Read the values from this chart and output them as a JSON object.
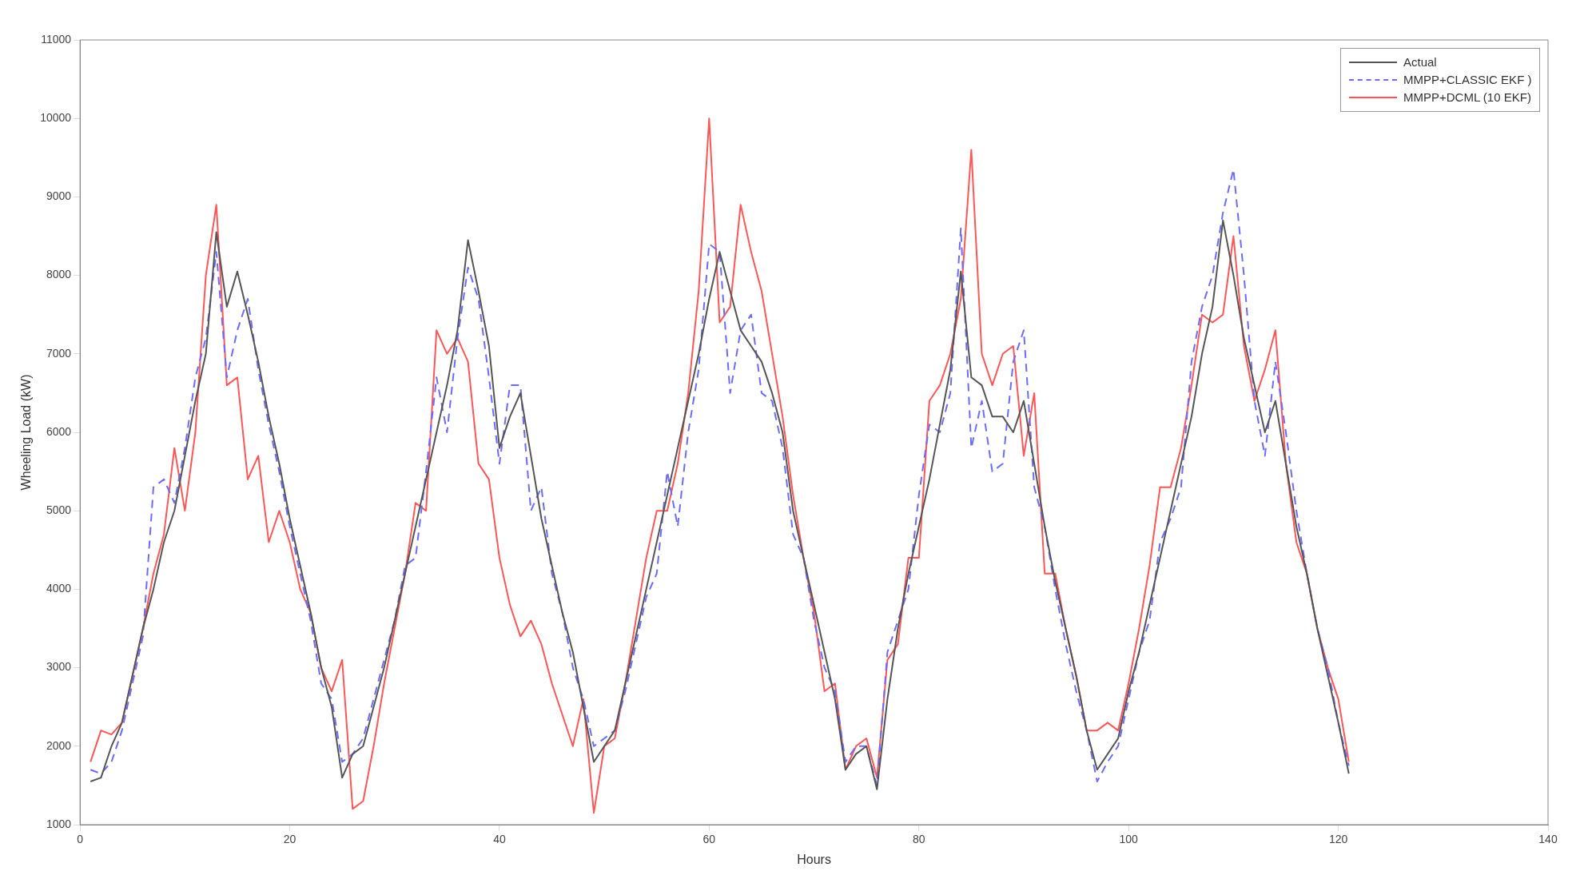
{
  "chart_data": {
    "type": "line",
    "xlabel": "Hours",
    "ylabel": "Wheeling Load (kW)",
    "xlim": [
      0,
      140
    ],
    "xticks": [
      0,
      20,
      40,
      60,
      80,
      100,
      120,
      140
    ],
    "ylim": [
      1000,
      11000
    ],
    "yticks": [
      1000,
      2000,
      3000,
      4000,
      5000,
      6000,
      7000,
      8000,
      9000,
      10000,
      11000
    ],
    "grid": false,
    "legend": "top right",
    "marker": "none",
    "x": [
      1,
      2,
      3,
      4,
      5,
      6,
      7,
      8,
      9,
      10,
      11,
      12,
      13,
      14,
      15,
      16,
      17,
      18,
      19,
      20,
      21,
      22,
      23,
      24,
      25,
      26,
      27,
      28,
      29,
      30,
      31,
      32,
      33,
      34,
      35,
      36,
      37,
      38,
      39,
      40,
      41,
      42,
      43,
      44,
      45,
      46,
      47,
      48,
      49,
      50,
      51,
      52,
      53,
      54,
      55,
      56,
      57,
      58,
      59,
      60,
      61,
      62,
      63,
      64,
      65,
      66,
      67,
      68,
      69,
      70,
      71,
      72,
      73,
      74,
      75,
      76,
      77,
      78,
      79,
      80,
      81,
      82,
      83,
      84,
      85,
      86,
      87,
      88,
      89,
      90,
      91,
      92,
      93,
      94,
      95,
      96,
      97,
      98,
      99,
      100,
      101,
      102,
      103,
      104,
      105,
      106,
      107,
      108,
      109,
      110,
      111,
      112,
      113,
      114,
      115,
      116,
      117,
      118,
      119,
      120,
      121
    ],
    "series": [
      {
        "name": "Actual",
        "color": "#555555",
        "line_style": "solid",
        "values": [
          1550,
          1600,
          2000,
          2300,
          2900,
          3500,
          4000,
          4600,
          5000,
          5700,
          6400,
          7000,
          8550,
          7600,
          8050,
          7500,
          6900,
          6200,
          5600,
          4900,
          4300,
          3700,
          3000,
          2500,
          1600,
          1900,
          2000,
          2500,
          3000,
          3600,
          4200,
          4800,
          5400,
          6000,
          6600,
          7300,
          8450,
          7800,
          7100,
          5800,
          6200,
          6500,
          5700,
          4900,
          4300,
          3700,
          3200,
          2500,
          1800,
          2000,
          2200,
          2800,
          3400,
          4000,
          4600,
          5200,
          5800,
          6400,
          7000,
          7700,
          8300,
          7800,
          7300,
          7100,
          6900,
          6500,
          6000,
          5000,
          4400,
          3800,
          3200,
          2600,
          1700,
          1900,
          2000,
          1450,
          2600,
          3500,
          4200,
          4800,
          5400,
          6100,
          6800,
          8050,
          6700,
          6600,
          6200,
          6200,
          6000,
          6400,
          5600,
          4800,
          4100,
          3500,
          2900,
          2200,
          1700,
          1900,
          2100,
          2700,
          3200,
          3800,
          4400,
          5000,
          5600,
          6200,
          7000,
          7600,
          8700,
          8000,
          7200,
          6600,
          6000,
          6400,
          5600,
          4800,
          4200,
          3500,
          2900,
          2300,
          1650
        ]
      },
      {
        "name": "MMPP+CLASSIC EKF )",
        "color": "#6b6bff",
        "line_style": "dashed",
        "values": [
          1700,
          1650,
          1800,
          2200,
          2800,
          3400,
          5300,
          5400,
          5100,
          5800,
          6700,
          7200,
          8300,
          6700,
          7300,
          7700,
          6800,
          6100,
          5500,
          4800,
          4200,
          3600,
          2800,
          2600,
          1800,
          1900,
          2100,
          2600,
          3100,
          3600,
          4300,
          4400,
          5500,
          6700,
          6000,
          7200,
          8100,
          7700,
          6700,
          5600,
          6600,
          6600,
          5000,
          5300,
          4200,
          3700,
          3000,
          2600,
          2000,
          2100,
          2200,
          2700,
          3300,
          3900,
          4200,
          5500,
          4800,
          6000,
          6800,
          8400,
          8300,
          6500,
          7300,
          7500,
          6500,
          6400,
          5800,
          4700,
          4400,
          3600,
          3000,
          2700,
          1800,
          2000,
          2000,
          1500,
          3200,
          3600,
          4000,
          5200,
          6100,
          6000,
          6500,
          8600,
          5800,
          6400,
          5500,
          5600,
          6900,
          7300,
          5300,
          4800,
          4000,
          3300,
          2700,
          2200,
          1550,
          1800,
          2000,
          2600,
          3200,
          3600,
          4600,
          4900,
          5300,
          6900,
          7600,
          8000,
          8800,
          9350,
          8000,
          6400,
          5700,
          6900,
          6000,
          5000,
          4200,
          3500,
          3000,
          2300,
          1750
        ]
      },
      {
        "name": "MMPP+DCML (10 EKF)",
        "color": "#ff5555",
        "line_style": "solid",
        "values": [
          1800,
          2200,
          2150,
          2300,
          2900,
          3500,
          4200,
          4700,
          5800,
          5000,
          6000,
          8000,
          8900,
          6600,
          6700,
          5400,
          5700,
          4600,
          5000,
          4600,
          4000,
          3700,
          3000,
          2700,
          3100,
          1200,
          1300,
          2000,
          2800,
          3500,
          4200,
          5100,
          5000,
          7300,
          7000,
          7200,
          6900,
          5600,
          5400,
          4400,
          3800,
          3400,
          3600,
          3300,
          2800,
          2400,
          2000,
          2600,
          1150,
          2000,
          2100,
          2800,
          3600,
          4400,
          5000,
          5000,
          5600,
          6500,
          7800,
          10000,
          7400,
          7600,
          8900,
          8300,
          7800,
          7000,
          6200,
          5200,
          4400,
          3700,
          2700,
          2800,
          1700,
          2000,
          2100,
          1600,
          3100,
          3300,
          4400,
          4400,
          6400,
          6600,
          7000,
          7700,
          9600,
          7000,
          6600,
          7000,
          7100,
          5700,
          6500,
          4200,
          4200,
          3500,
          2900,
          2200,
          2200,
          2300,
          2200,
          2800,
          3500,
          4300,
          5300,
          5300,
          5800,
          6600,
          7500,
          7400,
          7500,
          8500,
          7100,
          6400,
          6800,
          7300,
          5600,
          4600,
          4200,
          3500,
          3000,
          2600,
          1800
        ]
      }
    ]
  }
}
